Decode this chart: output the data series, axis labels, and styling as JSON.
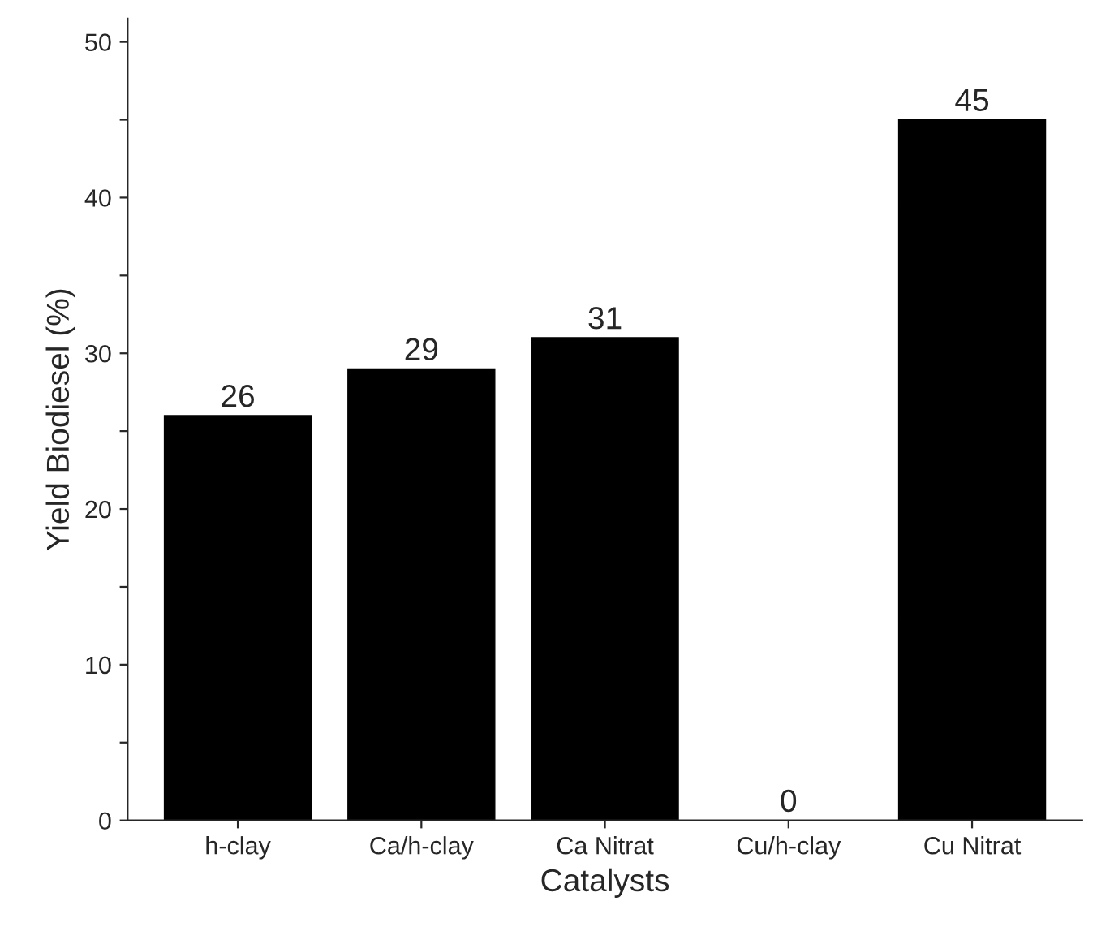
{
  "chart_data": {
    "type": "bar",
    "xlabel": "Catalysts",
    "ylabel": "Yield Biodiesel (%)",
    "categories": [
      "h-clay",
      "Ca/h-clay",
      "Ca Nitrat",
      "Cu/h-clay",
      "Cu Nitrat"
    ],
    "values": [
      26,
      29,
      31,
      0,
      45
    ],
    "color": "#000000",
    "data_labels": true,
    "ylim": [
      0,
      51.5
    ],
    "yticks": [
      0,
      {
        "value": 5,
        "label": null
      },
      10,
      {
        "value": 15,
        "label": null
      },
      20,
      {
        "value": 25,
        "label": null
      },
      30,
      {
        "value": 35,
        "label": null
      },
      40,
      {
        "value": 45,
        "label": null
      },
      50
    ],
    "grid": false,
    "legend": false
  }
}
